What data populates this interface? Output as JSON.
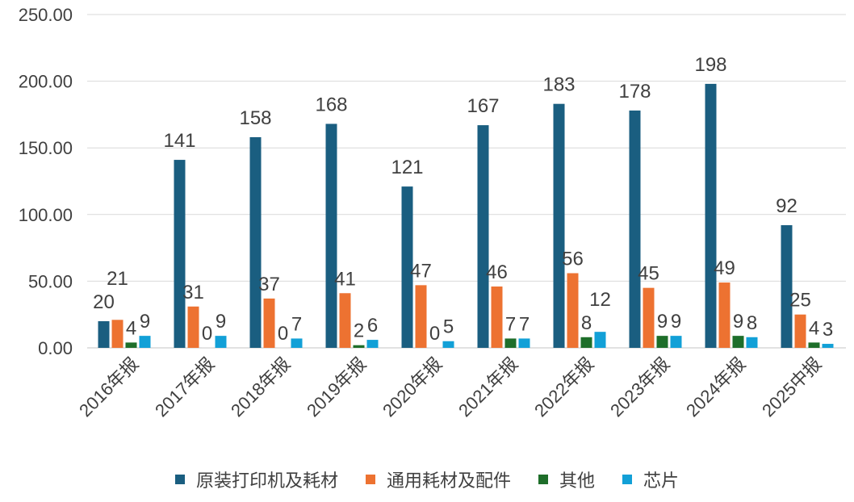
{
  "chart_data": {
    "type": "bar",
    "title": "",
    "xlabel": "",
    "ylabel": "",
    "ylim": [
      0,
      250
    ],
    "yticks": [
      "0.00",
      "50.00",
      "100.00",
      "150.00",
      "200.00",
      "250.00"
    ],
    "grid": true,
    "legend_position": "bottom",
    "categories": [
      "2016年报",
      "2017年报",
      "2018年报",
      "2019年报",
      "2020年报",
      "2021年报",
      "2022年报",
      "2023年报",
      "2024年报",
      "2025中报"
    ],
    "series": [
      {
        "name": "原装打印机及耗材",
        "color": "#1a5e80",
        "values": [
          20,
          141,
          158,
          168,
          121,
          167,
          183,
          178,
          198,
          92
        ]
      },
      {
        "name": "通用耗材及配件",
        "color": "#ed7231",
        "values": [
          21,
          31,
          37,
          41,
          47,
          46,
          56,
          45,
          49,
          25
        ]
      },
      {
        "name": "其他",
        "color": "#1e6e2a",
        "values": [
          4,
          0,
          0,
          2,
          0,
          7,
          8,
          9,
          9,
          4
        ]
      },
      {
        "name": "芯片",
        "color": "#12a0d7",
        "values": [
          9,
          9,
          7,
          6,
          5,
          7,
          12,
          9,
          8,
          3
        ]
      }
    ]
  }
}
